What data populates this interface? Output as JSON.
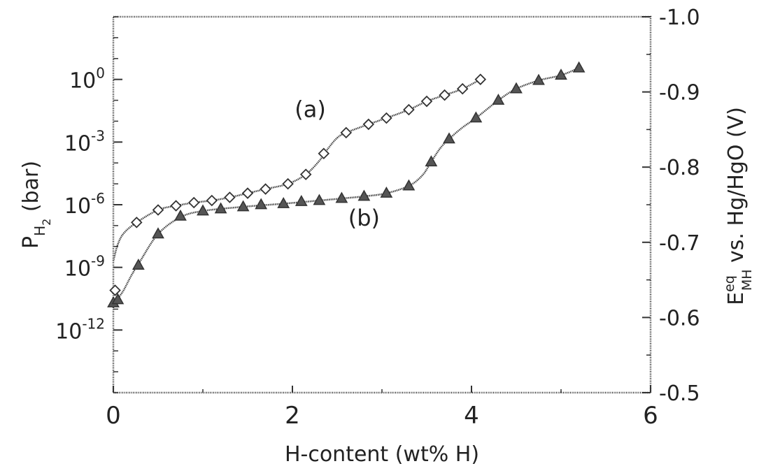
{
  "chart_data": {
    "type": "scatter",
    "xlabel": "H-content (wt% H)",
    "ylabel_left": {
      "main": "P",
      "sub1": "H",
      "sub2": "2",
      "unit": " (bar)"
    },
    "ylabel_right": {
      "main": "E",
      "sup": "eq",
      "sub": "MH",
      "rest": " vs. Hg/HgO (V)"
    },
    "xlim": [
      0,
      6
    ],
    "x_ticks": [
      {
        "value": 0,
        "label": "0"
      },
      {
        "value": 2,
        "label": "2"
      },
      {
        "value": 4,
        "label": "4"
      },
      {
        "value": 6,
        "label": "6"
      }
    ],
    "ylim_left_log10": [
      -15,
      3
    ],
    "left_ticks": [
      {
        "exp": 0,
        "base": "10",
        "sup": "0"
      },
      {
        "exp": -3,
        "base": "10",
        "sup": "-3"
      },
      {
        "exp": -6,
        "base": "10",
        "sup": "-6"
      },
      {
        "exp": -9,
        "base": "10",
        "sup": "-9"
      },
      {
        "exp": -12,
        "base": "10",
        "sup": "-12"
      }
    ],
    "ylim_right": [
      -0.5,
      -1.0
    ],
    "right_ticks": [
      {
        "value": -1.0,
        "label": "-1.0"
      },
      {
        "value": -0.9,
        "label": "-0.9"
      },
      {
        "value": -0.8,
        "label": "-0.8"
      },
      {
        "value": -0.7,
        "label": "-0.7"
      },
      {
        "value": -0.6,
        "label": "-0.6"
      },
      {
        "value": -0.5,
        "label": "-0.5"
      }
    ],
    "series": [
      {
        "name": "(a)",
        "marker": "diamond-open",
        "label_at": {
          "x": 2.2,
          "log10_p": -1.8
        },
        "points": [
          {
            "x": 0.02,
            "log10_p": -10.1
          },
          {
            "x": 0.26,
            "log10_p": -6.85
          },
          {
            "x": 0.5,
            "log10_p": -6.25
          },
          {
            "x": 0.7,
            "log10_p": -6.05
          },
          {
            "x": 0.9,
            "log10_p": -5.9
          },
          {
            "x": 1.1,
            "log10_p": -5.8
          },
          {
            "x": 1.3,
            "log10_p": -5.65
          },
          {
            "x": 1.5,
            "log10_p": -5.45
          },
          {
            "x": 1.7,
            "log10_p": -5.25
          },
          {
            "x": 1.95,
            "log10_p": -5.0
          },
          {
            "x": 2.15,
            "log10_p": -4.55
          },
          {
            "x": 2.35,
            "log10_p": -3.55
          },
          {
            "x": 2.6,
            "log10_p": -2.55
          },
          {
            "x": 2.85,
            "log10_p": -2.15
          },
          {
            "x": 3.05,
            "log10_p": -1.85
          },
          {
            "x": 3.3,
            "log10_p": -1.45
          },
          {
            "x": 3.5,
            "log10_p": -1.05
          },
          {
            "x": 3.7,
            "log10_p": -0.75
          },
          {
            "x": 3.9,
            "log10_p": -0.45
          },
          {
            "x": 4.1,
            "log10_p": 0.0
          }
        ],
        "fit": [
          [
            0.0,
            -8.7
          ],
          [
            0.05,
            -7.9
          ],
          [
            0.12,
            -7.35
          ],
          [
            0.26,
            -6.85
          ],
          [
            0.5,
            -6.25
          ],
          [
            0.7,
            -6.05
          ],
          [
            0.9,
            -5.9
          ],
          [
            1.1,
            -5.8
          ],
          [
            1.3,
            -5.65
          ],
          [
            1.5,
            -5.45
          ],
          [
            1.7,
            -5.25
          ],
          [
            1.95,
            -5.0
          ],
          [
            2.15,
            -4.55
          ],
          [
            2.3,
            -3.9
          ],
          [
            2.4,
            -3.3
          ],
          [
            2.5,
            -2.8
          ],
          [
            2.6,
            -2.55
          ],
          [
            2.85,
            -2.15
          ],
          [
            3.05,
            -1.85
          ],
          [
            3.3,
            -1.45
          ],
          [
            3.5,
            -1.05
          ],
          [
            3.7,
            -0.75
          ],
          [
            3.9,
            -0.45
          ],
          [
            4.1,
            0.0
          ]
        ]
      },
      {
        "name": "(b)",
        "marker": "triangle-filled",
        "label_at": {
          "x": 2.8,
          "log10_p": -7.0
        },
        "points": [
          {
            "x": 0.0,
            "log10_p": -10.7
          },
          {
            "x": 0.05,
            "log10_p": -10.55
          },
          {
            "x": 0.28,
            "log10_p": -8.9
          },
          {
            "x": 0.5,
            "log10_p": -7.4
          },
          {
            "x": 0.75,
            "log10_p": -6.55
          },
          {
            "x": 1.0,
            "log10_p": -6.3
          },
          {
            "x": 1.2,
            "log10_p": -6.2
          },
          {
            "x": 1.45,
            "log10_p": -6.1
          },
          {
            "x": 1.65,
            "log10_p": -6.0
          },
          {
            "x": 1.9,
            "log10_p": -5.95
          },
          {
            "x": 2.1,
            "log10_p": -5.85
          },
          {
            "x": 2.3,
            "log10_p": -5.8
          },
          {
            "x": 2.55,
            "log10_p": -5.7
          },
          {
            "x": 2.8,
            "log10_p": -5.6
          },
          {
            "x": 3.05,
            "log10_p": -5.45
          },
          {
            "x": 3.3,
            "log10_p": -5.1
          },
          {
            "x": 3.55,
            "log10_p": -3.95
          },
          {
            "x": 3.75,
            "log10_p": -2.85
          },
          {
            "x": 4.05,
            "log10_p": -1.85
          },
          {
            "x": 4.3,
            "log10_p": -1.0
          },
          {
            "x": 4.5,
            "log10_p": -0.45
          },
          {
            "x": 4.75,
            "log10_p": -0.05
          },
          {
            "x": 5.0,
            "log10_p": 0.2
          },
          {
            "x": 5.2,
            "log10_p": 0.55
          }
        ],
        "fit": [
          [
            0.0,
            -10.7
          ],
          [
            0.1,
            -10.2
          ],
          [
            0.2,
            -9.4
          ],
          [
            0.3,
            -8.7
          ],
          [
            0.5,
            -7.4
          ],
          [
            0.75,
            -6.6
          ],
          [
            1.0,
            -6.3
          ],
          [
            1.45,
            -6.1
          ],
          [
            1.9,
            -5.95
          ],
          [
            2.3,
            -5.8
          ],
          [
            2.8,
            -5.6
          ],
          [
            3.05,
            -5.45
          ],
          [
            3.3,
            -5.1
          ],
          [
            3.45,
            -4.6
          ],
          [
            3.55,
            -3.95
          ],
          [
            3.65,
            -3.3
          ],
          [
            3.75,
            -2.85
          ],
          [
            3.9,
            -2.3
          ],
          [
            4.05,
            -1.85
          ],
          [
            4.3,
            -1.0
          ],
          [
            4.5,
            -0.45
          ],
          [
            4.75,
            -0.05
          ],
          [
            5.0,
            0.2
          ],
          [
            5.2,
            0.55
          ]
        ]
      }
    ],
    "colors": {
      "axis": "#333333",
      "line": "#444444",
      "marker_fill_b": "#555555",
      "marker_fill_a": "#ffffff"
    }
  }
}
